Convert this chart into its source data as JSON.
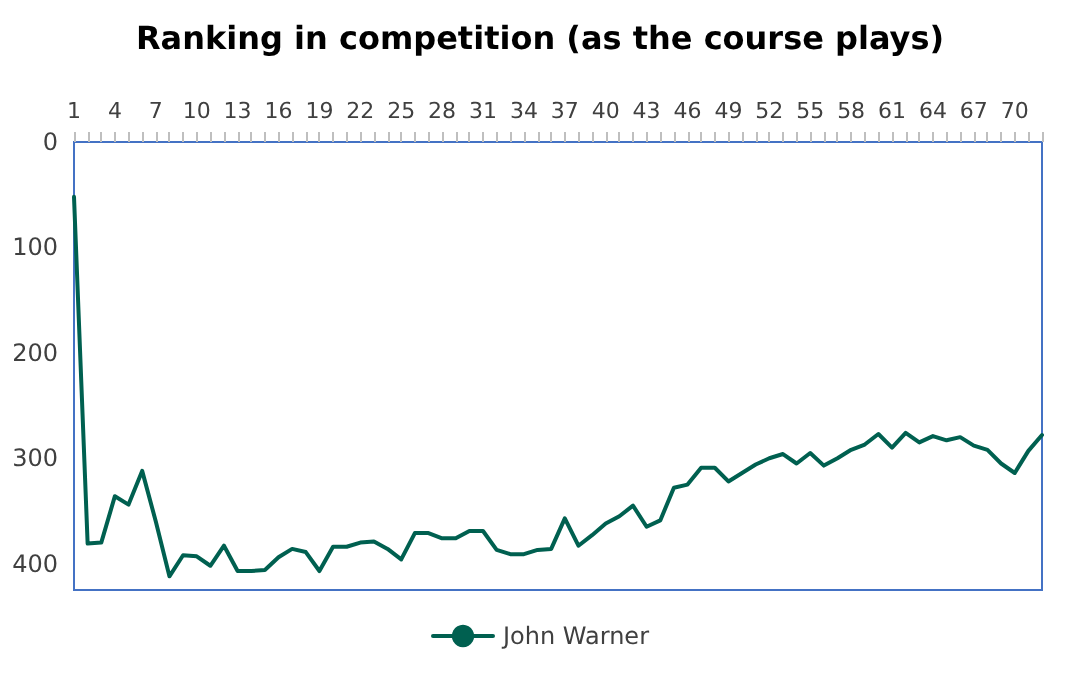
{
  "chart_data": {
    "type": "line",
    "title": "Ranking in competition (as the course plays)",
    "categories": [
      "1",
      null,
      null,
      "4",
      null,
      null,
      "7",
      null,
      null,
      "10",
      null,
      null,
      "13",
      null,
      null,
      "16",
      null,
      null,
      "19",
      null,
      null,
      "22",
      null,
      null,
      "25",
      null,
      null,
      "28",
      null,
      null,
      "31",
      null,
      null,
      "34",
      null,
      null,
      "37",
      null,
      null,
      "40",
      null,
      null,
      "43",
      null,
      null,
      "46",
      null,
      null,
      "49",
      null,
      null,
      "52",
      null,
      null,
      "55",
      null,
      null,
      "58",
      null,
      null,
      "61",
      null,
      null,
      "64",
      null,
      null,
      "67",
      null,
      null,
      "70",
      null,
      null
    ],
    "series": [
      {
        "name": "John Warner",
        "color": "#006050",
        "values": [
          52,
          381,
          380,
          336,
          344,
          312,
          360,
          412,
          392,
          393,
          402,
          383,
          407,
          407,
          406,
          394,
          386,
          389,
          407,
          384,
          384,
          380,
          379,
          386,
          396,
          371,
          371,
          376,
          376,
          369,
          369,
          387,
          391,
          391,
          387,
          386,
          357,
          383,
          373,
          362,
          355,
          345,
          365,
          359,
          328,
          325,
          309,
          309,
          322,
          314,
          306,
          300,
          296,
          305,
          295,
          307,
          300,
          292,
          287,
          277,
          290,
          276,
          285,
          279,
          283,
          280,
          288,
          292,
          305,
          314,
          293,
          278
        ]
      }
    ],
    "ylim": [
      425,
      0
    ],
    "yticks": [
      0,
      100,
      200,
      300,
      400
    ],
    "grid": false,
    "legend": "bottom",
    "marker": "none",
    "line_style": "solid"
  }
}
